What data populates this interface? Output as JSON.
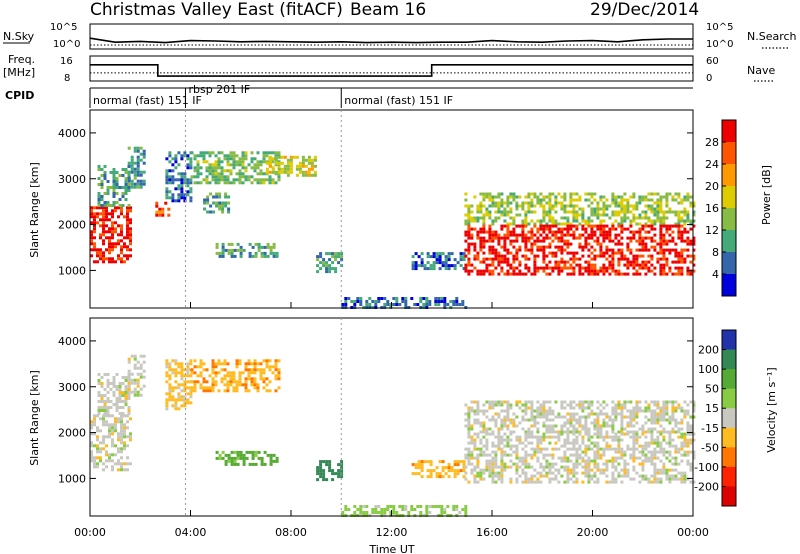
{
  "header": {
    "title": "Christmas Valley East (fitACF)",
    "beam": "Beam 16",
    "date": "29/Dec/2014"
  },
  "summary_panels": {
    "nsky_label": "N.Sky",
    "nsearch_label": "N.Search",
    "freq_label_line1": "Freq.",
    "freq_label_line2": "[MHz]",
    "nave_label": "Nave",
    "cpid_label": "CPID",
    "nsky_ticks": [
      "10^5",
      "10^0"
    ],
    "nsearch_ticks": [
      "10^5",
      "10^0"
    ],
    "freq_ticks": [
      "16",
      "8"
    ],
    "nave_ticks": [
      "60",
      "0"
    ]
  },
  "cpid_segments": [
    {
      "label": "normal (fast) 151 IF",
      "start_hour": 0,
      "end_hour": 3.8
    },
    {
      "label": "rbsp 201 IF",
      "start_hour": 3.8,
      "end_hour": 10.0
    },
    {
      "label": "normal (fast) 151 IF",
      "start_hour": 10.0,
      "end_hour": 24
    }
  ],
  "power_colorbar": {
    "title": "Power [dB]",
    "ticks": [
      "28",
      "24",
      "20",
      "16",
      "12",
      "8",
      "4"
    ],
    "colors": [
      "#ee0000",
      "#ff5500",
      "#ff9900",
      "#ddcc00",
      "#88bb44",
      "#44aa77",
      "#3366aa",
      "#0000dd"
    ]
  },
  "velocity_colorbar": {
    "title": "Velocity [m s⁻¹]",
    "ticks": [
      "200",
      "100",
      "50",
      "15",
      "-15",
      "-50",
      "-100",
      "-200"
    ],
    "colors": [
      "#2233aa",
      "#338855",
      "#55aa33",
      "#88cc44",
      "#c8c8c0",
      "#ffbb22",
      "#ff7700",
      "#ff2200",
      "#dd0000"
    ]
  },
  "axes": {
    "y_label": "Slant Range [km]",
    "y_ticks": [
      "4000",
      "3000",
      "2000",
      "1000"
    ],
    "x_label": "Time UT",
    "x_ticks": [
      "00:00",
      "04:00",
      "08:00",
      "12:00",
      "16:00",
      "20:00",
      "00:00"
    ]
  },
  "chart_data": [
    {
      "type": "line",
      "title": "N.Sky / N.Search",
      "xlim": [
        0,
        24
      ],
      "ylim_log10": [
        0,
        5
      ],
      "x": [
        0,
        1,
        2,
        3,
        4,
        5,
        6,
        7,
        8,
        9,
        10,
        11,
        12,
        13,
        14,
        15,
        16,
        17,
        18,
        19,
        20,
        21,
        22,
        23,
        24
      ],
      "series": [
        {
          "name": "N.Sky",
          "values_log10": [
            2.2,
            1.2,
            1.4,
            1.1,
            1.6,
            1.5,
            1.3,
            1.4,
            1.3,
            1.2,
            1.3,
            1.1,
            1.2,
            1.1,
            1.2,
            1.2,
            1.6,
            1.3,
            1.2,
            1.5,
            1.6,
            1.3,
            1.8,
            2.0,
            2.0
          ]
        },
        {
          "name": "N.Search",
          "values_log10": [
            0.5,
            0.5,
            0.5,
            0.5,
            0.5,
            0.5,
            0.5,
            0.5,
            0.5,
            0.5,
            0.5,
            0.5,
            0.5,
            0.5,
            0.5,
            0.5,
            0.5,
            0.5,
            0.5,
            0.5,
            0.5,
            0.5,
            0.5,
            0.5,
            0.5
          ]
        }
      ]
    },
    {
      "type": "line",
      "title": "Freq. / Nave",
      "xlim": [
        0,
        24
      ],
      "ylim": [
        8,
        16
      ],
      "x": [
        0,
        2.7,
        2.7,
        13.6,
        13.6,
        24
      ],
      "series": [
        {
          "name": "Freq.",
          "values": [
            14.2,
            14.2,
            8.9,
            8.9,
            14.2,
            14.2
          ]
        },
        {
          "name": "Nave",
          "values": [
            10.4,
            10.4,
            10.4,
            10.4,
            10.4,
            10.4
          ]
        }
      ]
    },
    {
      "type": "heatmap",
      "title": "Power [dB]",
      "xlim": [
        0,
        24
      ],
      "ylim": [
        180,
        4500
      ],
      "clim": [
        0,
        30
      ],
      "regions": [
        {
          "t_start": 0.0,
          "t_end": 1.6,
          "r_low": 1200,
          "r_high": 2400,
          "power": 28
        },
        {
          "t_start": 0.3,
          "t_end": 1.6,
          "r_low": 2400,
          "r_high": 3300,
          "power": 10
        },
        {
          "t_start": 1.5,
          "t_end": 2.2,
          "r_low": 2800,
          "r_high": 3700,
          "power": 8
        },
        {
          "t_start": 2.6,
          "t_end": 3.1,
          "r_low": 2200,
          "r_high": 2500,
          "power": 24
        },
        {
          "t_start": 3.0,
          "t_end": 4.0,
          "r_low": 2500,
          "r_high": 3600,
          "power": 6
        },
        {
          "t_start": 4.0,
          "t_end": 7.5,
          "r_low": 2900,
          "r_high": 3600,
          "power": 12
        },
        {
          "t_start": 7.0,
          "t_end": 9.0,
          "r_low": 3100,
          "r_high": 3500,
          "power": 16
        },
        {
          "t_start": 4.5,
          "t_end": 5.5,
          "r_low": 2300,
          "r_high": 2700,
          "power": 10
        },
        {
          "t_start": 5.0,
          "t_end": 7.5,
          "r_low": 1300,
          "r_high": 1600,
          "power": 10
        },
        {
          "t_start": 9.0,
          "t_end": 10.0,
          "r_low": 1000,
          "r_high": 1400,
          "power": 8
        },
        {
          "t_start": 10.0,
          "t_end": 15.0,
          "r_low": 180,
          "r_high": 420,
          "power": 6
        },
        {
          "t_start": 12.8,
          "t_end": 14.9,
          "r_low": 1050,
          "r_high": 1400,
          "power": 6
        },
        {
          "t_start": 14.9,
          "t_end": 24.0,
          "r_low": 2000,
          "r_high": 2700,
          "power": 14
        },
        {
          "t_start": 14.9,
          "t_end": 24.0,
          "r_low": 900,
          "r_high": 2000,
          "power": 28
        }
      ]
    },
    {
      "type": "heatmap",
      "title": "Velocity [m s⁻¹]",
      "xlim": [
        0,
        24
      ],
      "ylim": [
        180,
        4500
      ],
      "clim": [
        -250,
        250
      ],
      "regions": [
        {
          "t_start": 0.0,
          "t_end": 1.6,
          "r_low": 1200,
          "r_high": 2400,
          "velocity": 0
        },
        {
          "t_start": 0.3,
          "t_end": 1.6,
          "r_low": 2400,
          "r_high": 3300,
          "velocity": 0
        },
        {
          "t_start": 1.5,
          "t_end": 2.2,
          "r_low": 2800,
          "r_high": 3700,
          "velocity": 0
        },
        {
          "t_start": 3.0,
          "t_end": 4.0,
          "r_low": 2500,
          "r_high": 3600,
          "velocity": -30
        },
        {
          "t_start": 4.0,
          "t_end": 7.5,
          "r_low": 2900,
          "r_high": 3600,
          "velocity": -40
        },
        {
          "t_start": 5.0,
          "t_end": 7.5,
          "r_low": 1300,
          "r_high": 1600,
          "velocity": 60
        },
        {
          "t_start": 9.0,
          "t_end": 10.0,
          "r_low": 1000,
          "r_high": 1400,
          "velocity": 180
        },
        {
          "t_start": 10.0,
          "t_end": 15.0,
          "r_low": 180,
          "r_high": 420,
          "velocity": 30
        },
        {
          "t_start": 12.8,
          "t_end": 14.9,
          "r_low": 1050,
          "r_high": 1400,
          "velocity": -40
        },
        {
          "t_start": 14.9,
          "t_end": 24.0,
          "r_low": 2000,
          "r_high": 2700,
          "velocity": 0
        },
        {
          "t_start": 14.9,
          "t_end": 24.0,
          "r_low": 900,
          "r_high": 2000,
          "velocity": 0
        }
      ]
    }
  ]
}
